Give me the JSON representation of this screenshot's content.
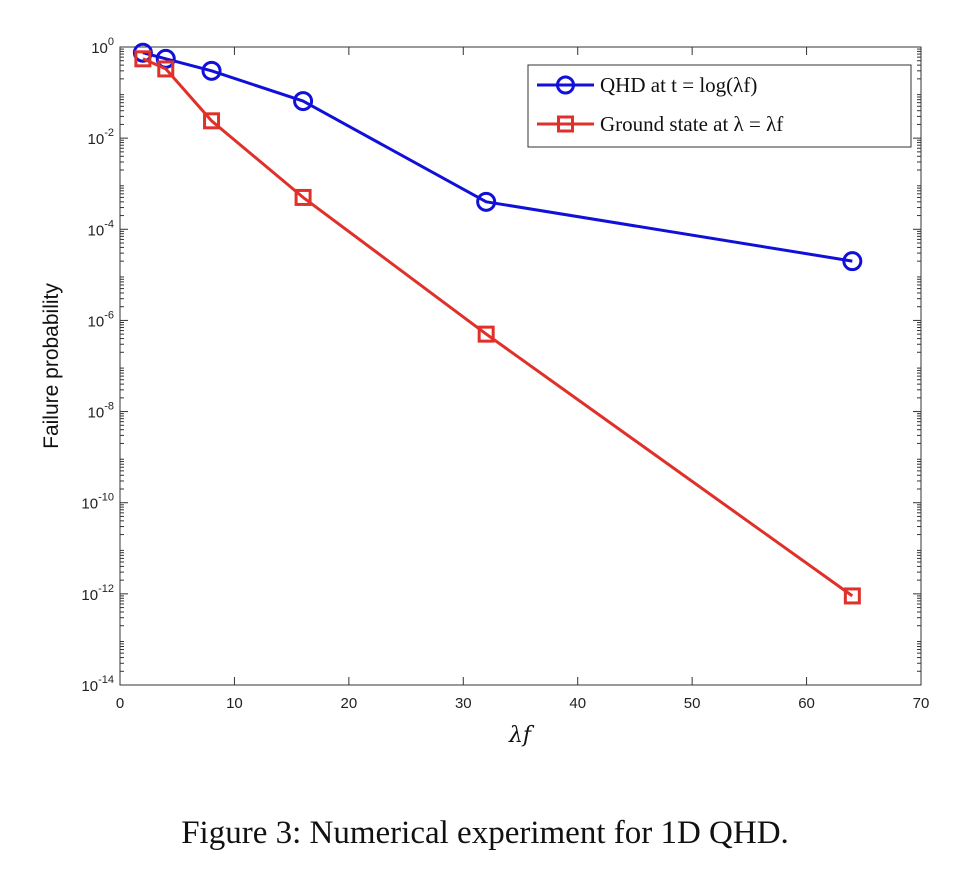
{
  "chart_data": {
    "type": "line",
    "x_scale": "linear",
    "y_scale": "log",
    "xlim": [
      0,
      70
    ],
    "ylim": [
      1e-14,
      1
    ],
    "x_ticks": [
      "0",
      "10",
      "20",
      "30",
      "40",
      "50",
      "60",
      "70"
    ],
    "y_ticks": [
      {
        "base": "10",
        "exp": "0"
      },
      {
        "base": "10",
        "exp": "-2"
      },
      {
        "base": "10",
        "exp": "-4"
      },
      {
        "base": "10",
        "exp": "-6"
      },
      {
        "base": "10",
        "exp": "-8"
      },
      {
        "base": "10",
        "exp": "-10"
      },
      {
        "base": "10",
        "exp": "-12"
      },
      {
        "base": "10",
        "exp": "-14"
      }
    ],
    "xlabel": "λf",
    "ylabel": "Failure probability",
    "grid": false,
    "legend_position": "top-right",
    "series": [
      {
        "name": "QHD at t = log(λf)",
        "color": "#1010d8",
        "marker": "circle",
        "x": [
          2,
          4,
          8,
          16,
          32,
          64
        ],
        "y": [
          0.75,
          0.55,
          0.3,
          0.065,
          0.0004,
          2e-05
        ]
      },
      {
        "name": "Ground state at λ = λf",
        "color": "#e0302a",
        "marker": "square",
        "x": [
          2,
          4,
          8,
          16,
          32,
          64
        ],
        "y": [
          0.55,
          0.33,
          0.024,
          0.0005,
          5e-07,
          9e-13
        ]
      }
    ]
  },
  "caption": "Figure 3: Numerical experiment for 1D QHD."
}
